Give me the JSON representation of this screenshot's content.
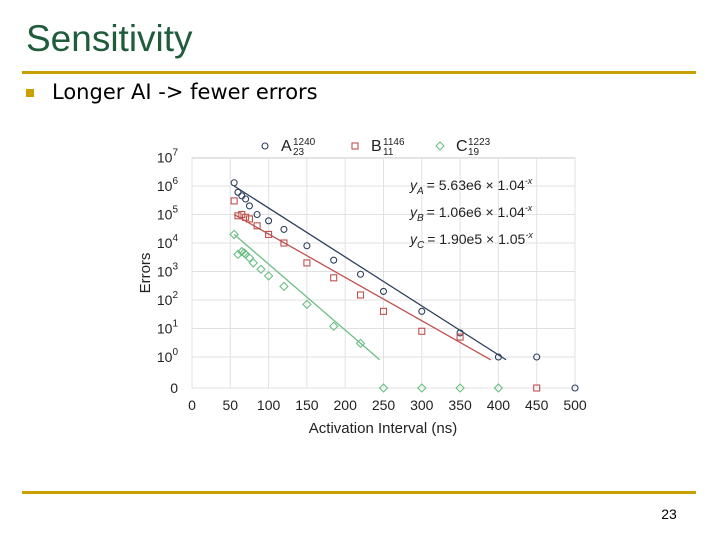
{
  "slide": {
    "title": "Sensitivity",
    "bullet": "Longer AI -> fewer errors",
    "page_number": "23"
  },
  "colors": {
    "title": "#1f5c3c",
    "rule": "#c8a000",
    "A": "#2d3e5c",
    "B": "#c0504d",
    "C": "#6cbf84"
  },
  "chart_data": {
    "type": "scatter",
    "title": "",
    "xlabel": "Activation Interval (ns)",
    "ylabel": "Errors",
    "x_ticks": [
      0,
      50,
      100,
      150,
      200,
      250,
      300,
      350,
      400,
      450,
      500
    ],
    "xlim": [
      0,
      500
    ],
    "y_ticks": [
      {
        "label": "0",
        "exp": null
      },
      {
        "label": "10",
        "exp": "0"
      },
      {
        "label": "10",
        "exp": "1"
      },
      {
        "label": "10",
        "exp": "2"
      },
      {
        "label": "10",
        "exp": "3"
      },
      {
        "label": "10",
        "exp": "4"
      },
      {
        "label": "10",
        "exp": "5"
      },
      {
        "label": "10",
        "exp": "6"
      },
      {
        "label": "10",
        "exp": "7"
      }
    ],
    "y_scale": "log",
    "grid": true,
    "legend_position": "top",
    "series": [
      {
        "key": "A",
        "name": "A",
        "sup": "1240",
        "sub": "23",
        "marker": "circle",
        "x": [
          55,
          60,
          65,
          70,
          75,
          85,
          100,
          120,
          150,
          185,
          220,
          250,
          300,
          350,
          400,
          450,
          500
        ],
        "y": [
          1300000,
          600000,
          450000,
          350000,
          200000,
          100000,
          60000,
          30000,
          8000,
          2500,
          800,
          200,
          40,
          7,
          1,
          1,
          0
        ],
        "fit": {
          "x": [
            55,
            410
          ],
          "y": [
            1000000,
            0.8
          ]
        },
        "fit_label": [
          "y",
          "A",
          "= 5.63e6 × 1.04",
          "-x"
        ]
      },
      {
        "key": "B",
        "name": "B",
        "sup": "1146",
        "sub": "11",
        "marker": "square",
        "x": [
          55,
          60,
          65,
          70,
          75,
          85,
          100,
          120,
          150,
          185,
          220,
          250,
          300,
          350,
          450
        ],
        "y": [
          300000,
          90000,
          100000,
          80000,
          70000,
          40000,
          20000,
          10000,
          2000,
          600,
          150,
          40,
          8,
          5,
          0
        ],
        "fit": {
          "x": [
            55,
            390
          ],
          "y": [
            100000,
            0.8
          ]
        },
        "fit_label": [
          "y",
          "B",
          "= 1.06e6 × 1.04",
          "-x"
        ]
      },
      {
        "key": "C",
        "name": "C",
        "sup": "1223",
        "sub": "19",
        "marker": "diamond",
        "x": [
          55,
          60,
          65,
          68,
          70,
          75,
          80,
          90,
          100,
          120,
          150,
          185,
          220,
          250,
          300,
          350,
          400
        ],
        "y": [
          20000,
          4000,
          5000,
          4500,
          4000,
          3000,
          2000,
          1200,
          700,
          300,
          70,
          12,
          3,
          0,
          0,
          0,
          0
        ],
        "fit": {
          "x": [
            55,
            245
          ],
          "y": [
            20000,
            0.8
          ]
        },
        "fit_label": [
          "y",
          "C",
          "= 1.90e5 × 1.05",
          "-x"
        ]
      }
    ]
  }
}
